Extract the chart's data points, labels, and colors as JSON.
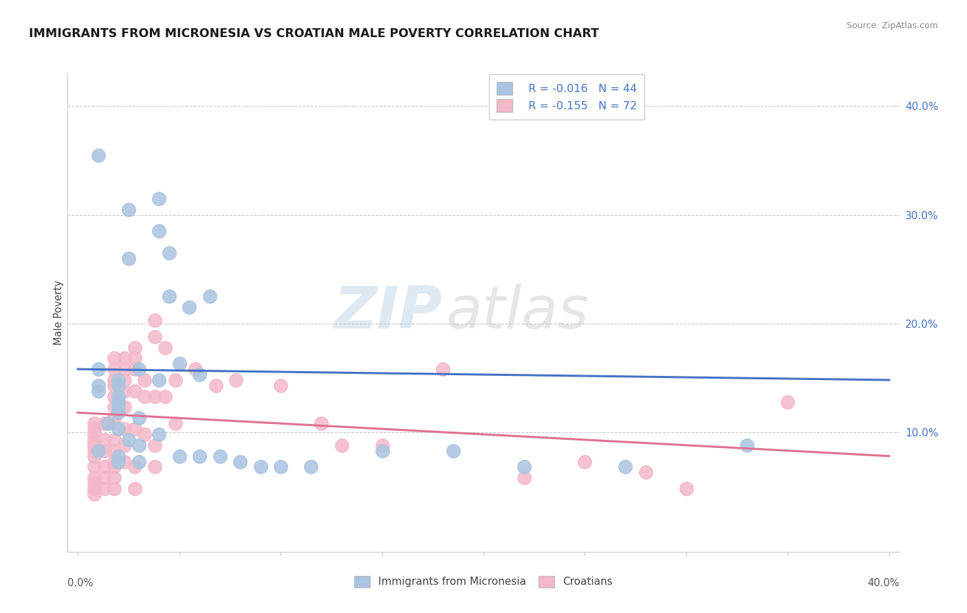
{
  "title": "IMMIGRANTS FROM MICRONESIA VS CROATIAN MALE POVERTY CORRELATION CHART",
  "source": "Source: ZipAtlas.com",
  "ylabel": "Male Poverty",
  "y_ticks": [
    0.0,
    0.1,
    0.2,
    0.3,
    0.4
  ],
  "y_tick_labels": [
    "",
    "10.0%",
    "20.0%",
    "30.0%",
    "40.0%"
  ],
  "x_ticks": [
    0.0,
    0.05,
    0.1,
    0.15,
    0.2,
    0.25,
    0.3,
    0.35,
    0.4
  ],
  "xlim": [
    -0.005,
    0.405
  ],
  "ylim": [
    -0.01,
    0.43
  ],
  "blue_color": "#aac4e0",
  "pink_color": "#f4b8c8",
  "blue_line_color": "#4472c4",
  "pink_line_color": "#e07090",
  "legend_R_blue": "R = -0.016",
  "legend_N_blue": "N = 44",
  "legend_R_pink": "R = -0.155",
  "legend_N_pink": "N = 72",
  "watermark_zip": "ZIP",
  "watermark_atlas": "atlas",
  "blue_scatter": [
    [
      0.01,
      0.355
    ],
    [
      0.025,
      0.305
    ],
    [
      0.04,
      0.315
    ],
    [
      0.04,
      0.285
    ],
    [
      0.025,
      0.26
    ],
    [
      0.045,
      0.265
    ],
    [
      0.045,
      0.225
    ],
    [
      0.055,
      0.215
    ],
    [
      0.065,
      0.225
    ],
    [
      0.03,
      0.158
    ],
    [
      0.02,
      0.148
    ],
    [
      0.01,
      0.158
    ],
    [
      0.01,
      0.143
    ],
    [
      0.01,
      0.138
    ],
    [
      0.02,
      0.143
    ],
    [
      0.02,
      0.128
    ],
    [
      0.02,
      0.133
    ],
    [
      0.02,
      0.118
    ],
    [
      0.02,
      0.123
    ],
    [
      0.015,
      0.108
    ],
    [
      0.02,
      0.103
    ],
    [
      0.03,
      0.113
    ],
    [
      0.025,
      0.093
    ],
    [
      0.03,
      0.088
    ],
    [
      0.01,
      0.083
    ],
    [
      0.02,
      0.078
    ],
    [
      0.02,
      0.073
    ],
    [
      0.03,
      0.073
    ],
    [
      0.04,
      0.148
    ],
    [
      0.04,
      0.098
    ],
    [
      0.05,
      0.163
    ],
    [
      0.05,
      0.078
    ],
    [
      0.06,
      0.153
    ],
    [
      0.06,
      0.078
    ],
    [
      0.07,
      0.078
    ],
    [
      0.08,
      0.073
    ],
    [
      0.09,
      0.068
    ],
    [
      0.1,
      0.068
    ],
    [
      0.115,
      0.068
    ],
    [
      0.15,
      0.083
    ],
    [
      0.185,
      0.083
    ],
    [
      0.22,
      0.068
    ],
    [
      0.27,
      0.068
    ],
    [
      0.33,
      0.088
    ]
  ],
  "pink_scatter": [
    [
      0.008,
      0.108
    ],
    [
      0.008,
      0.103
    ],
    [
      0.008,
      0.098
    ],
    [
      0.008,
      0.093
    ],
    [
      0.008,
      0.088
    ],
    [
      0.008,
      0.083
    ],
    [
      0.008,
      0.078
    ],
    [
      0.008,
      0.068
    ],
    [
      0.008,
      0.058
    ],
    [
      0.008,
      0.053
    ],
    [
      0.008,
      0.048
    ],
    [
      0.008,
      0.043
    ],
    [
      0.013,
      0.108
    ],
    [
      0.013,
      0.093
    ],
    [
      0.013,
      0.083
    ],
    [
      0.013,
      0.068
    ],
    [
      0.013,
      0.058
    ],
    [
      0.013,
      0.048
    ],
    [
      0.018,
      0.168
    ],
    [
      0.018,
      0.158
    ],
    [
      0.018,
      0.148
    ],
    [
      0.018,
      0.143
    ],
    [
      0.018,
      0.133
    ],
    [
      0.018,
      0.123
    ],
    [
      0.018,
      0.113
    ],
    [
      0.018,
      0.108
    ],
    [
      0.018,
      0.093
    ],
    [
      0.018,
      0.083
    ],
    [
      0.018,
      0.073
    ],
    [
      0.018,
      0.068
    ],
    [
      0.018,
      0.058
    ],
    [
      0.018,
      0.048
    ],
    [
      0.023,
      0.168
    ],
    [
      0.023,
      0.158
    ],
    [
      0.023,
      0.148
    ],
    [
      0.023,
      0.138
    ],
    [
      0.023,
      0.123
    ],
    [
      0.023,
      0.103
    ],
    [
      0.023,
      0.088
    ],
    [
      0.023,
      0.073
    ],
    [
      0.028,
      0.178
    ],
    [
      0.028,
      0.168
    ],
    [
      0.028,
      0.158
    ],
    [
      0.028,
      0.138
    ],
    [
      0.028,
      0.103
    ],
    [
      0.028,
      0.068
    ],
    [
      0.028,
      0.048
    ],
    [
      0.033,
      0.148
    ],
    [
      0.033,
      0.133
    ],
    [
      0.033,
      0.098
    ],
    [
      0.038,
      0.203
    ],
    [
      0.038,
      0.188
    ],
    [
      0.038,
      0.133
    ],
    [
      0.038,
      0.088
    ],
    [
      0.038,
      0.068
    ],
    [
      0.043,
      0.178
    ],
    [
      0.043,
      0.133
    ],
    [
      0.048,
      0.148
    ],
    [
      0.048,
      0.108
    ],
    [
      0.058,
      0.158
    ],
    [
      0.068,
      0.143
    ],
    [
      0.078,
      0.148
    ],
    [
      0.1,
      0.143
    ],
    [
      0.12,
      0.108
    ],
    [
      0.13,
      0.088
    ],
    [
      0.15,
      0.088
    ],
    [
      0.18,
      0.158
    ],
    [
      0.22,
      0.058
    ],
    [
      0.25,
      0.073
    ],
    [
      0.28,
      0.063
    ],
    [
      0.3,
      0.048
    ],
    [
      0.35,
      0.128
    ]
  ],
  "blue_trendline": [
    [
      0.0,
      0.158
    ],
    [
      0.4,
      0.148
    ]
  ],
  "pink_trendline": [
    [
      0.0,
      0.118
    ],
    [
      0.4,
      0.078
    ]
  ]
}
